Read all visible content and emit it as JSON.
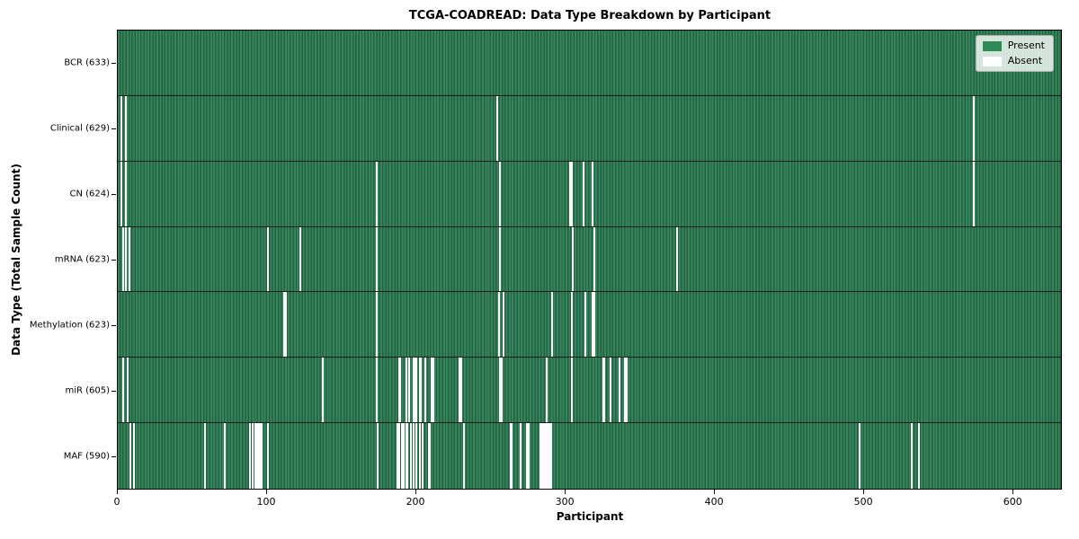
{
  "title": "TCGA-COADREAD: Data Type Breakdown by Participant",
  "xlabel": "Participant",
  "ylabel": "Data Type (Total Sample Count)",
  "legend": {
    "present_label": "Present",
    "absent_label": "Absent"
  },
  "colors": {
    "present": "#2e8b57",
    "present_stripe_dark": "#226143",
    "absent": "#fcfcfc",
    "legend_bg": "rgba(255,255,255,0.8)"
  },
  "chart_data": {
    "type": "heatmap",
    "title": "TCGA-COADREAD: Data Type Breakdown by Participant",
    "xlabel": "Participant",
    "ylabel": "Data Type (Total Sample Count)",
    "x_max": 633,
    "x_ticks": [
      0,
      100,
      200,
      300,
      400,
      500,
      600
    ],
    "grid": false,
    "legend_position": "upper right",
    "legend_entries": [
      "Present",
      "Absent"
    ],
    "rows": [
      {
        "name": "BCR",
        "label": "BCR (633)",
        "total_samples": 633,
        "absent_participants": []
      },
      {
        "name": "Clinical",
        "label": "Clinical (629)",
        "total_samples": 629,
        "absent_participants": [
          2,
          5,
          254,
          574
        ]
      },
      {
        "name": "CN",
        "label": "CN (624)",
        "total_samples": 624,
        "absent_participants": [
          2,
          5,
          173,
          256,
          303,
          304,
          312,
          318,
          574
        ]
      },
      {
        "name": "mRNA",
        "label": "mRNA (623)",
        "total_samples": 623,
        "absent_participants": [
          3,
          5,
          7,
          100,
          122,
          173,
          256,
          305,
          319,
          375
        ]
      },
      {
        "name": "Methylation",
        "label": "Methylation (623)",
        "total_samples": 623,
        "absent_participants": [
          111,
          112,
          173,
          255,
          258,
          291,
          304,
          313,
          318,
          319
        ]
      },
      {
        "name": "miR",
        "label": "miR (605)",
        "total_samples": 605,
        "absent_participants": [
          3,
          6,
          137,
          173,
          188,
          189,
          193,
          195,
          198,
          199,
          200,
          202,
          203,
          206,
          210,
          211,
          229,
          230,
          256,
          257,
          287,
          304,
          325,
          326,
          330,
          336,
          340,
          341
        ]
      },
      {
        "name": "MAF",
        "label": "MAF (590)",
        "total_samples": 590,
        "absent_participants": [
          8,
          10,
          58,
          71,
          88,
          90,
          92,
          93,
          94,
          95,
          96,
          100,
          174,
          187,
          188,
          190,
          191,
          193,
          194,
          196,
          198,
          200,
          202,
          204,
          208,
          209,
          232,
          263,
          264,
          270,
          274,
          275,
          283,
          284,
          285,
          286,
          287,
          288,
          289,
          290,
          497,
          532,
          537
        ]
      }
    ]
  }
}
